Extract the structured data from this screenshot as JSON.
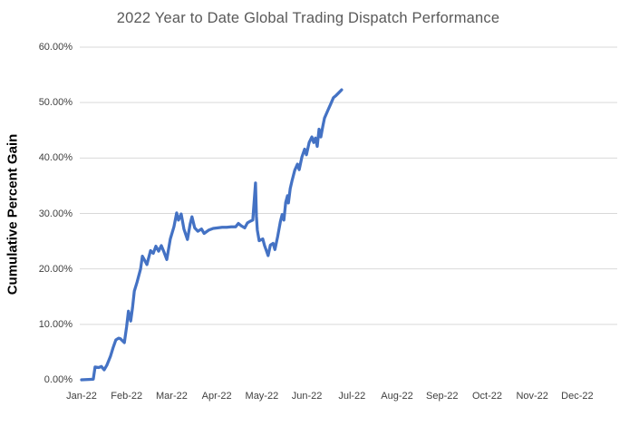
{
  "colors": {
    "line": "#4472C4",
    "gridline": "#D9D9D9",
    "title_text": "#595959",
    "tick_text": "#404040"
  },
  "chart_data": {
    "type": "line",
    "title": "2022 Year to Date Global Trading Dispatch Performance",
    "ylabel": "Cumulative Percent Gain",
    "xlabel": "",
    "legend": "none",
    "grid": "horizontal",
    "ylim": [
      0,
      60
    ],
    "xlim_months": [
      0,
      11.9
    ],
    "x_tick_labels": [
      "Jan-22",
      "Feb-22",
      "Mar-22",
      "Apr-22",
      "May-22",
      "Jun-22",
      "Jul-22",
      "Aug-22",
      "Sep-22",
      "Oct-22",
      "Nov-22",
      "Dec-22"
    ],
    "y_tick_labels": [
      "0.00%",
      "10.00%",
      "20.00%",
      "30.00%",
      "40.00%",
      "50.00%",
      "60.00%"
    ],
    "y_tick_values": [
      0,
      10,
      20,
      30,
      40,
      50,
      60
    ],
    "y_gridline_values": [
      10,
      20,
      30,
      40,
      50,
      60
    ],
    "series": [
      {
        "name": "Cumulative Percent Gain",
        "x_unit": "months since Jan-22 start",
        "y_unit": "percent",
        "points": [
          [
            0.0,
            0.0
          ],
          [
            0.26,
            0.1
          ],
          [
            0.3,
            2.3
          ],
          [
            0.38,
            2.2
          ],
          [
            0.44,
            2.4
          ],
          [
            0.5,
            1.8
          ],
          [
            0.56,
            2.6
          ],
          [
            0.64,
            4.2
          ],
          [
            0.7,
            5.8
          ],
          [
            0.76,
            7.2
          ],
          [
            0.82,
            7.5
          ],
          [
            0.86,
            7.4
          ],
          [
            0.95,
            6.7
          ],
          [
            1.0,
            9.6
          ],
          [
            1.04,
            12.4
          ],
          [
            1.09,
            10.6
          ],
          [
            1.13,
            13.0
          ],
          [
            1.17,
            16.0
          ],
          [
            1.23,
            17.6
          ],
          [
            1.31,
            20.0
          ],
          [
            1.35,
            22.3
          ],
          [
            1.45,
            20.8
          ],
          [
            1.53,
            23.3
          ],
          [
            1.59,
            22.8
          ],
          [
            1.65,
            24.1
          ],
          [
            1.71,
            23.2
          ],
          [
            1.77,
            24.2
          ],
          [
            1.83,
            23.0
          ],
          [
            1.89,
            21.7
          ],
          [
            1.97,
            25.4
          ],
          [
            2.05,
            27.6
          ],
          [
            2.11,
            30.1
          ],
          [
            2.15,
            28.8
          ],
          [
            2.21,
            29.9
          ],
          [
            2.27,
            27.2
          ],
          [
            2.35,
            25.3
          ],
          [
            2.41,
            28.1
          ],
          [
            2.45,
            29.4
          ],
          [
            2.51,
            27.4
          ],
          [
            2.58,
            26.8
          ],
          [
            2.66,
            27.2
          ],
          [
            2.72,
            26.4
          ],
          [
            2.82,
            27.0
          ],
          [
            2.92,
            27.3
          ],
          [
            3.02,
            27.4
          ],
          [
            3.12,
            27.5
          ],
          [
            3.22,
            27.5
          ],
          [
            3.32,
            27.6
          ],
          [
            3.42,
            27.6
          ],
          [
            3.48,
            28.2
          ],
          [
            3.54,
            27.8
          ],
          [
            3.62,
            27.4
          ],
          [
            3.68,
            28.3
          ],
          [
            3.74,
            28.6
          ],
          [
            3.8,
            28.8
          ],
          [
            3.86,
            35.5
          ],
          [
            3.88,
            29.5
          ],
          [
            3.9,
            27.0
          ],
          [
            3.94,
            25.1
          ],
          [
            4.02,
            25.4
          ],
          [
            4.06,
            24.2
          ],
          [
            4.1,
            23.3
          ],
          [
            4.14,
            22.4
          ],
          [
            4.19,
            24.3
          ],
          [
            4.25,
            24.6
          ],
          [
            4.29,
            23.5
          ],
          [
            4.35,
            25.8
          ],
          [
            4.41,
            28.5
          ],
          [
            4.45,
            29.8
          ],
          [
            4.49,
            28.8
          ],
          [
            4.53,
            32.0
          ],
          [
            4.57,
            33.2
          ],
          [
            4.59,
            31.9
          ],
          [
            4.63,
            34.5
          ],
          [
            4.67,
            35.9
          ],
          [
            4.73,
            37.8
          ],
          [
            4.79,
            38.9
          ],
          [
            4.83,
            37.9
          ],
          [
            4.89,
            40.2
          ],
          [
            4.95,
            41.6
          ],
          [
            4.99,
            40.6
          ],
          [
            5.05,
            42.8
          ],
          [
            5.11,
            43.8
          ],
          [
            5.15,
            42.8
          ],
          [
            5.19,
            43.6
          ],
          [
            5.23,
            42.1
          ],
          [
            5.27,
            45.2
          ],
          [
            5.31,
            43.8
          ],
          [
            5.35,
            45.6
          ],
          [
            5.39,
            47.2
          ],
          [
            5.47,
            48.7
          ],
          [
            5.53,
            49.8
          ],
          [
            5.59,
            50.9
          ],
          [
            5.65,
            51.3
          ],
          [
            5.71,
            51.8
          ],
          [
            5.77,
            52.3
          ]
        ]
      }
    ]
  }
}
